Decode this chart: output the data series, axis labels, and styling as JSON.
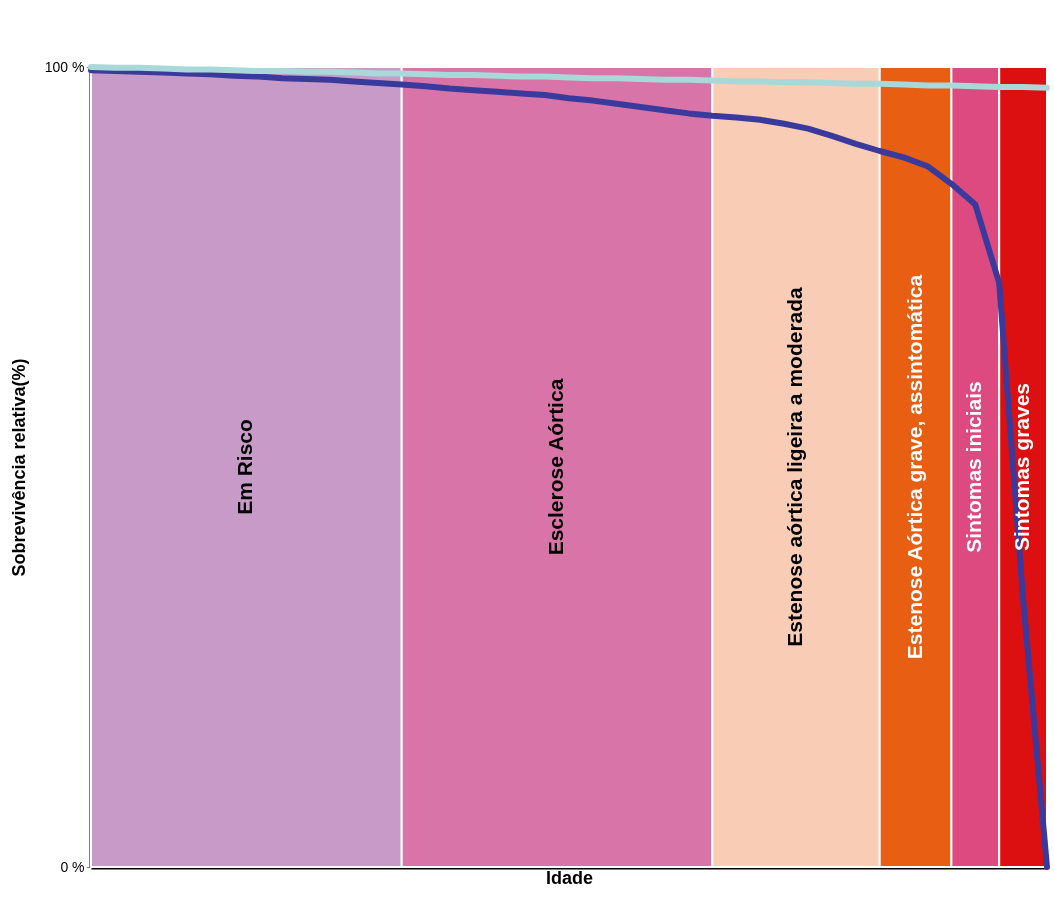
{
  "chart_data": {
    "type": "line",
    "xlabel": "Idade",
    "ylabel": "Sobrevivência relativa(%)",
    "categories": [
      null,
      null,
      null,
      null,
      null,
      null,
      null,
      null,
      null,
      null,
      null,
      null,
      null,
      null,
      null,
      null,
      null,
      null,
      null,
      null,
      null,
      null,
      null,
      null,
      null,
      null,
      null,
      null,
      null,
      null,
      null,
      null,
      null,
      null,
      null,
      null,
      null,
      null,
      null,
      null,
      null
    ],
    "ylim": [
      0,
      100
    ],
    "yticks": [
      {
        "value": 0,
        "label": "0 %"
      },
      {
        "value": 100,
        "label": "100 %"
      }
    ],
    "tick_labels": "y",
    "series": [
      {
        "color": "#3a3a9c",
        "values": [
          99.6,
          99.5,
          99.4,
          99.3,
          99.2,
          99.1,
          98.9,
          98.8,
          98.6,
          98.5,
          98.4,
          98.2,
          98,
          97.8,
          97.6,
          97.3,
          97.1,
          96.9,
          96.7,
          96.5,
          96.1,
          95.8,
          95.4,
          95,
          94.6,
          94.2,
          93.9,
          93.7,
          93.4,
          92.9,
          92.3,
          91.4,
          90.4,
          89.5,
          88.7,
          87.6,
          85.4,
          82.8,
          73,
          33.5,
          0
        ]
      },
      {
        "color": "#a8d8d8",
        "values": [
          100,
          99.9,
          99.9,
          99.8,
          99.7,
          99.7,
          99.6,
          99.5,
          99.5,
          99.4,
          99.4,
          99.3,
          99.2,
          99.2,
          99.1,
          99,
          99,
          98.9,
          98.8,
          98.8,
          98.7,
          98.6,
          98.6,
          98.5,
          98.4,
          98.4,
          98.3,
          98.2,
          98.2,
          98.1,
          98.1,
          98,
          97.9,
          97.9,
          97.8,
          97.7,
          97.7,
          97.6,
          97.5,
          97.5,
          97.4
        ]
      }
    ],
    "annotations": [
      "Em Risco",
      "Esclerose Aórtica",
      "Estenose aórtica ligeira a moderada",
      "Estenose Aórtica grave,  assintomática",
      "Sintomas iniciais",
      "Sintomas graves"
    ]
  }
}
